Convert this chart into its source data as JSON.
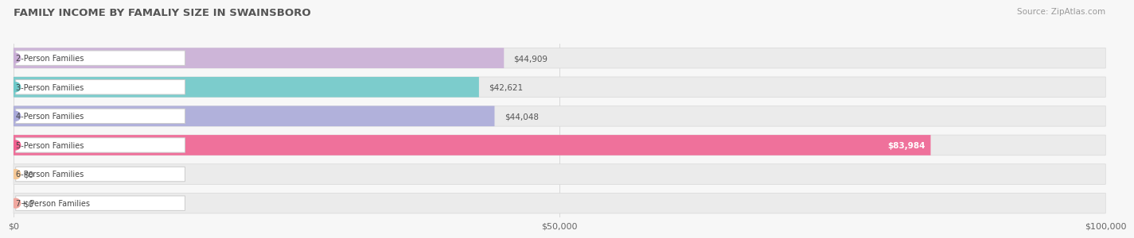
{
  "title": "FAMILY INCOME BY FAMALIY SIZE IN SWAINSBORO",
  "source": "Source: ZipAtlas.com",
  "categories": [
    "2-Person Families",
    "3-Person Families",
    "4-Person Families",
    "5-Person Families",
    "6-Person Families",
    "7+ Person Families"
  ],
  "values": [
    44909,
    42621,
    44048,
    83984,
    0,
    0
  ],
  "bar_colors": [
    "#c9aed6",
    "#6dc8c8",
    "#a9a9d9",
    "#f06090",
    "#f5c897",
    "#f0a8a0"
  ],
  "value_labels": [
    "$44,909",
    "$42,621",
    "$44,048",
    "$83,984",
    "$0",
    "$0"
  ],
  "value_label_inside": [
    false,
    false,
    false,
    true,
    false,
    false
  ],
  "value_label_colors_inside": "#ffffff",
  "value_label_colors_outside": "#555555",
  "xmax": 100000,
  "xtick_labels": [
    "$0",
    "$50,000",
    "$100,000"
  ],
  "background_color": "#f7f7f7",
  "bar_bg_color": "#ebebeb",
  "figsize": [
    14.06,
    3.05
  ],
  "dpi": 100
}
